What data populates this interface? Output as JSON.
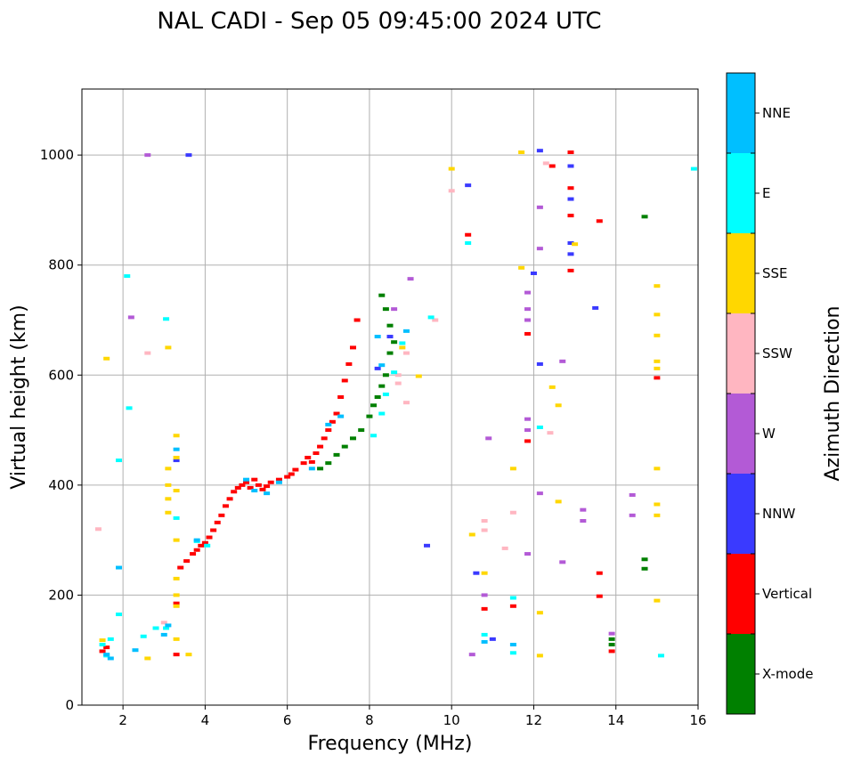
{
  "chart_data": {
    "type": "scatter",
    "title": "NAL CADI - Sep 05 09:45:00 2024 UTC",
    "xlabel": "Frequency (MHz)",
    "ylabel": "Virtual height (km)",
    "xlim": [
      1,
      16
    ],
    "ylim": [
      0,
      1120
    ],
    "xticks": [
      2,
      4,
      6,
      8,
      10,
      12,
      14,
      16
    ],
    "yticks": [
      0,
      200,
      400,
      600,
      800,
      1000
    ],
    "grid": true,
    "colorbar": {
      "label": "Azimuth Direction",
      "entries": [
        {
          "name": "X-mode",
          "color": "#008000"
        },
        {
          "name": "Vertical",
          "color": "#ff0000"
        },
        {
          "name": "NNW",
          "color": "#3a3aff"
        },
        {
          "name": "W",
          "color": "#b35ad6"
        },
        {
          "name": "SSW",
          "color": "#ffb6c1"
        },
        {
          "name": "SSE",
          "color": "#ffd700"
        },
        {
          "name": "E",
          "color": "#00ffff"
        },
        {
          "name": "NNE",
          "color": "#00bfff"
        }
      ]
    },
    "series": [
      {
        "name": "Vertical",
        "color": "#ff0000",
        "points": [
          [
            1.5,
            98
          ],
          [
            1.6,
            105
          ],
          [
            3.3,
            92
          ],
          [
            3.4,
            250
          ],
          [
            3.55,
            262
          ],
          [
            3.7,
            275
          ],
          [
            3.8,
            282
          ],
          [
            3.9,
            290
          ],
          [
            4.0,
            295
          ],
          [
            4.1,
            305
          ],
          [
            4.2,
            318
          ],
          [
            4.3,
            332
          ],
          [
            4.4,
            345
          ],
          [
            4.5,
            362
          ],
          [
            4.6,
            375
          ],
          [
            4.7,
            388
          ],
          [
            4.8,
            395
          ],
          [
            4.9,
            400
          ],
          [
            5.0,
            405
          ],
          [
            5.1,
            395
          ],
          [
            5.2,
            410
          ],
          [
            5.3,
            400
          ],
          [
            5.4,
            392
          ],
          [
            5.5,
            398
          ],
          [
            5.6,
            405
          ],
          [
            5.8,
            410
          ],
          [
            6.0,
            415
          ],
          [
            6.1,
            420
          ],
          [
            6.2,
            428
          ],
          [
            6.4,
            440
          ],
          [
            6.5,
            450
          ],
          [
            6.6,
            442
          ],
          [
            6.7,
            458
          ],
          [
            6.8,
            470
          ],
          [
            6.9,
            485
          ],
          [
            7.0,
            500
          ],
          [
            7.1,
            515
          ],
          [
            7.2,
            530
          ],
          [
            7.3,
            560
          ],
          [
            7.4,
            590
          ],
          [
            7.5,
            620
          ],
          [
            7.6,
            650
          ],
          [
            7.7,
            700
          ],
          [
            12.9,
            1005
          ],
          [
            12.9,
            890
          ],
          [
            12.9,
            790
          ],
          [
            12.9,
            940
          ],
          [
            12.45,
            980
          ],
          [
            13.6,
            880
          ],
          [
            15.0,
            595
          ],
          [
            10.4,
            855
          ],
          [
            10.8,
            175
          ],
          [
            11.5,
            180
          ],
          [
            11.85,
            480
          ],
          [
            11.85,
            675
          ],
          [
            13.6,
            240
          ],
          [
            13.6,
            198
          ],
          [
            13.9,
            98
          ],
          [
            3.3,
            185
          ]
        ]
      },
      {
        "name": "X-mode",
        "color": "#008000",
        "points": [
          [
            6.8,
            430
          ],
          [
            7.0,
            440
          ],
          [
            7.2,
            455
          ],
          [
            7.4,
            470
          ],
          [
            7.6,
            485
          ],
          [
            7.8,
            500
          ],
          [
            8.0,
            525
          ],
          [
            8.1,
            545
          ],
          [
            8.2,
            560
          ],
          [
            8.3,
            580
          ],
          [
            8.4,
            600
          ],
          [
            8.5,
            640
          ],
          [
            8.6,
            660
          ],
          [
            8.5,
            690
          ],
          [
            8.4,
            720
          ],
          [
            8.3,
            745
          ],
          [
            14.7,
            888
          ],
          [
            14.7,
            265
          ],
          [
            14.7,
            248
          ],
          [
            13.9,
            110
          ],
          [
            13.9,
            120
          ]
        ]
      },
      {
        "name": "NNW",
        "color": "#3a3aff",
        "points": [
          [
            12.9,
            980
          ],
          [
            12.9,
            920
          ],
          [
            12.9,
            820
          ],
          [
            12.9,
            840
          ],
          [
            13.5,
            722
          ],
          [
            9.4,
            290
          ],
          [
            10.6,
            240
          ],
          [
            11.0,
            120
          ],
          [
            10.4,
            945
          ],
          [
            12.0,
            785
          ],
          [
            12.15,
            1008
          ],
          [
            8.5,
            670
          ],
          [
            8.2,
            612
          ],
          [
            3.6,
            1000
          ],
          [
            3.3,
            445
          ],
          [
            12.15,
            620
          ]
        ]
      },
      {
        "name": "W",
        "color": "#b35ad6",
        "points": [
          [
            11.85,
            750
          ],
          [
            11.85,
            720
          ],
          [
            11.85,
            700
          ],
          [
            11.85,
            520
          ],
          [
            11.85,
            500
          ],
          [
            14.4,
            382
          ],
          [
            14.4,
            345
          ],
          [
            13.2,
            355
          ],
          [
            13.2,
            335
          ],
          [
            12.7,
            625
          ],
          [
            12.7,
            260
          ],
          [
            10.9,
            485
          ],
          [
            10.5,
            92
          ],
          [
            10.8,
            200
          ],
          [
            11.85,
            275
          ],
          [
            12.15,
            385
          ],
          [
            9.0,
            775
          ],
          [
            8.6,
            720
          ],
          [
            12.15,
            830
          ],
          [
            12.15,
            905
          ],
          [
            13.9,
            130
          ],
          [
            2.6,
            1000
          ],
          [
            2.2,
            705
          ]
        ]
      },
      {
        "name": "SSW",
        "color": "#ffb6c1",
        "points": [
          [
            8.7,
            600
          ],
          [
            8.7,
            585
          ],
          [
            8.9,
            640
          ],
          [
            8.9,
            550
          ],
          [
            10.0,
            935
          ],
          [
            10.8,
            335
          ],
          [
            10.8,
            318
          ],
          [
            11.3,
            285
          ],
          [
            11.5,
            350
          ],
          [
            12.4,
            495
          ],
          [
            12.3,
            985
          ],
          [
            9.6,
            700
          ],
          [
            3.0,
            150
          ],
          [
            1.4,
            320
          ],
          [
            2.6,
            640
          ]
        ]
      },
      {
        "name": "SSE",
        "color": "#ffd700",
        "points": [
          [
            3.1,
            430
          ],
          [
            3.1,
            400
          ],
          [
            3.1,
            375
          ],
          [
            3.1,
            350
          ],
          [
            3.3,
            490
          ],
          [
            3.3,
            450
          ],
          [
            3.3,
            390
          ],
          [
            3.3,
            300
          ],
          [
            3.3,
            230
          ],
          [
            3.3,
            200
          ],
          [
            3.3,
            180
          ],
          [
            3.3,
            120
          ],
          [
            3.6,
            92
          ],
          [
            15.0,
            762
          ],
          [
            15.0,
            710
          ],
          [
            15.0,
            672
          ],
          [
            15.0,
            625
          ],
          [
            15.0,
            612
          ],
          [
            15.0,
            430
          ],
          [
            15.0,
            365
          ],
          [
            15.0,
            345
          ],
          [
            15.0,
            190
          ],
          [
            12.6,
            545
          ],
          [
            12.6,
            370
          ],
          [
            13.0,
            838
          ],
          [
            12.45,
            578
          ],
          [
            10.0,
            975
          ],
          [
            9.2,
            598
          ],
          [
            8.8,
            650
          ],
          [
            11.5,
            430
          ],
          [
            11.7,
            795
          ],
          [
            11.7,
            1005
          ],
          [
            10.8,
            240
          ],
          [
            10.5,
            310
          ],
          [
            12.15,
            90
          ],
          [
            12.15,
            168
          ],
          [
            1.5,
            118
          ],
          [
            1.6,
            630
          ],
          [
            3.1,
            650
          ],
          [
            2.6,
            85
          ]
        ]
      },
      {
        "name": "E",
        "color": "#00ffff",
        "points": [
          [
            1.5,
            110
          ],
          [
            1.6,
            90
          ],
          [
            1.7,
            120
          ],
          [
            1.9,
            445
          ],
          [
            2.5,
            125
          ],
          [
            2.8,
            140
          ],
          [
            3.05,
            140
          ],
          [
            3.3,
            340
          ],
          [
            3.8,
            298
          ],
          [
            4.05,
            290
          ],
          [
            8.1,
            490
          ],
          [
            8.3,
            530
          ],
          [
            8.4,
            565
          ],
          [
            8.6,
            605
          ],
          [
            8.8,
            658
          ],
          [
            9.5,
            705
          ],
          [
            10.4,
            840
          ],
          [
            10.8,
            128
          ],
          [
            11.5,
            195
          ],
          [
            11.5,
            95
          ],
          [
            15.1,
            90
          ],
          [
            15.9,
            975
          ],
          [
            12.15,
            505
          ],
          [
            3.05,
            702
          ],
          [
            1.9,
            165
          ],
          [
            2.15,
            540
          ],
          [
            2.1,
            780
          ]
        ]
      },
      {
        "name": "NNE",
        "color": "#00bfff",
        "points": [
          [
            1.6,
            92
          ],
          [
            1.7,
            85
          ],
          [
            2.3,
            100
          ],
          [
            3.0,
            128
          ],
          [
            3.1,
            145
          ],
          [
            3.3,
            465
          ],
          [
            5.0,
            410
          ],
          [
            5.2,
            390
          ],
          [
            5.5,
            385
          ],
          [
            5.8,
            405
          ],
          [
            6.6,
            430
          ],
          [
            7.0,
            510
          ],
          [
            7.3,
            525
          ],
          [
            8.2,
            670
          ],
          [
            8.3,
            618
          ],
          [
            8.9,
            680
          ],
          [
            10.8,
            115
          ],
          [
            11.5,
            110
          ],
          [
            3.8,
            300
          ],
          [
            1.9,
            250
          ]
        ]
      }
    ]
  }
}
